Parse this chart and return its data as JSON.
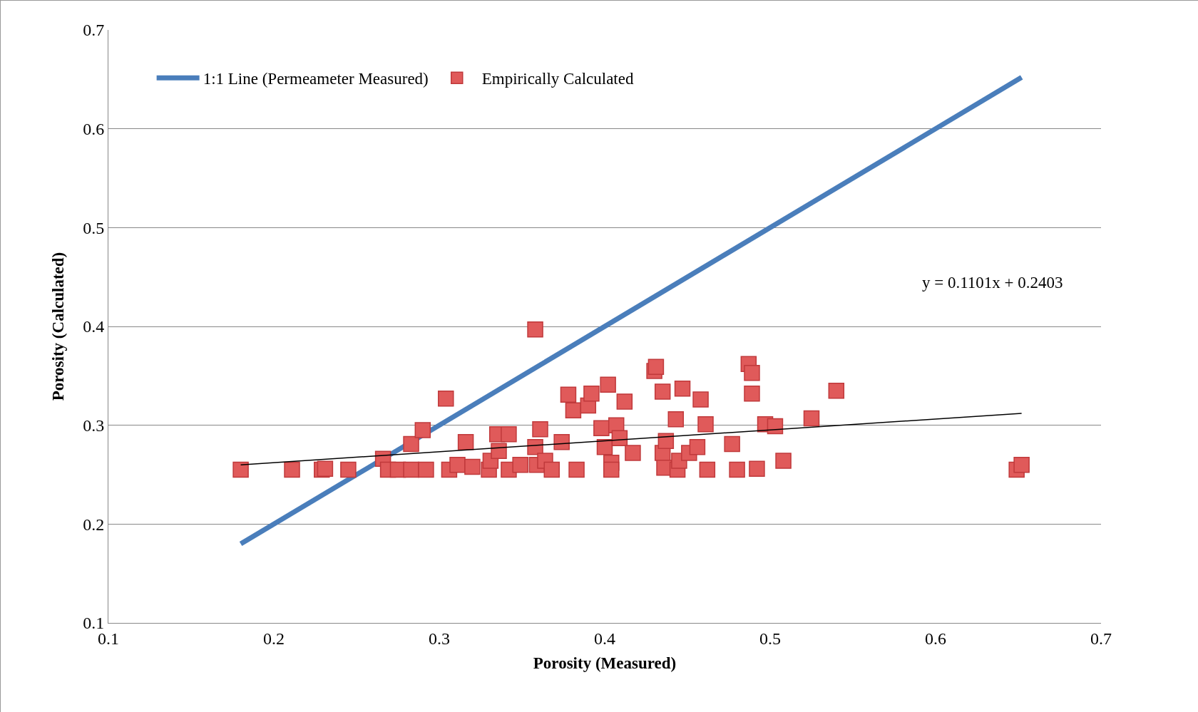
{
  "chart_data": {
    "type": "scatter",
    "xlabel": "Porosity (Measured)",
    "ylabel": "Porosity (Calculated)",
    "xlim": [
      0.1,
      0.7
    ],
    "ylim": [
      0.1,
      0.7
    ],
    "xticks": [
      0.1,
      0.2,
      0.3,
      0.4,
      0.5,
      0.6,
      0.7
    ],
    "yticks": [
      0.1,
      0.2,
      0.3,
      0.4,
      0.5,
      0.6,
      0.7
    ],
    "grid": "y",
    "legend": "top left",
    "annotations": [
      "y = 0.1101x + 0.2403"
    ],
    "series": [
      {
        "name": "1:1 Line (Permeameter Measured)",
        "type": "line",
        "color": "#4a7ebb",
        "x": [
          0.18,
          0.652
        ],
        "values": [
          0.18,
          0.652
        ]
      },
      {
        "name": "Empirically Calculated",
        "marker": "square",
        "color": "#e05a5a",
        "x": [
          0.18,
          0.211,
          0.229,
          0.231,
          0.245,
          0.266,
          0.269,
          0.275,
          0.283,
          0.283,
          0.29,
          0.292,
          0.304,
          0.306,
          0.311,
          0.316,
          0.32,
          0.33,
          0.331,
          0.335,
          0.336,
          0.342,
          0.342,
          0.349,
          0.358,
          0.358,
          0.359,
          0.361,
          0.364,
          0.368,
          0.374,
          0.378,
          0.381,
          0.383,
          0.39,
          0.392,
          0.398,
          0.4,
          0.402,
          0.404,
          0.404,
          0.407,
          0.409,
          0.412,
          0.417,
          0.43,
          0.431,
          0.435,
          0.435,
          0.436,
          0.437,
          0.443,
          0.444,
          0.445,
          0.447,
          0.451,
          0.456,
          0.458,
          0.461,
          0.462,
          0.477,
          0.48,
          0.487,
          0.489,
          0.489,
          0.492,
          0.497,
          0.503,
          0.508,
          0.525,
          0.54,
          0.649,
          0.652
        ],
        "values": [
          0.255,
          0.255,
          0.255,
          0.256,
          0.255,
          0.266,
          0.255,
          0.255,
          0.255,
          0.281,
          0.295,
          0.255,
          0.327,
          0.255,
          0.26,
          0.283,
          0.258,
          0.255,
          0.264,
          0.291,
          0.274,
          0.291,
          0.255,
          0.26,
          0.397,
          0.278,
          0.26,
          0.296,
          0.264,
          0.255,
          0.283,
          0.331,
          0.315,
          0.255,
          0.32,
          0.332,
          0.297,
          0.278,
          0.341,
          0.262,
          0.255,
          0.3,
          0.287,
          0.324,
          0.272,
          0.355,
          0.359,
          0.334,
          0.272,
          0.257,
          0.284,
          0.306,
          0.255,
          0.264,
          0.337,
          0.272,
          0.278,
          0.326,
          0.301,
          0.255,
          0.281,
          0.255,
          0.362,
          0.353,
          0.332,
          0.256,
          0.301,
          0.299,
          0.264,
          0.307,
          0.335,
          0.255,
          0.26
        ]
      },
      {
        "type": "line",
        "color": "#000000",
        "x": [
          0.18,
          0.652
        ],
        "values": [
          0.26,
          0.312
        ]
      }
    ]
  }
}
